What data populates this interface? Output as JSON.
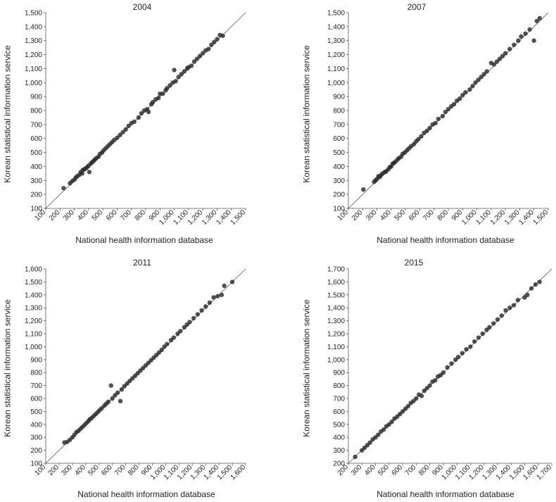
{
  "chart_data": [
    {
      "type": "scatter",
      "title": "2004",
      "xlabel": "National health information database",
      "ylabel": "Korean statistical information service",
      "xlim": [
        100,
        1500
      ],
      "ylim": [
        100,
        1500
      ],
      "xticks": [
        "100",
        "200",
        "300",
        "400",
        "500",
        "600",
        "700",
        "800",
        "900",
        "1,000",
        "1,100",
        "1,200",
        "1,300",
        "1,400",
        "1,500"
      ],
      "yticks": [
        "100",
        "200",
        "300",
        "400",
        "500",
        "600",
        "700",
        "800",
        "900",
        "1,000",
        "1,100",
        "1,200",
        "1,300",
        "1,400",
        "1,500"
      ],
      "reference_line": "y = x",
      "points": [
        [
          225,
          245
        ],
        [
          270,
          280
        ],
        [
          285,
          295
        ],
        [
          300,
          305
        ],
        [
          310,
          320
        ],
        [
          320,
          330
        ],
        [
          335,
          340
        ],
        [
          345,
          360
        ],
        [
          355,
          350
        ],
        [
          360,
          375
        ],
        [
          370,
          380
        ],
        [
          380,
          385
        ],
        [
          390,
          395
        ],
        [
          400,
          405
        ],
        [
          405,
          360
        ],
        [
          415,
          420
        ],
        [
          425,
          430
        ],
        [
          435,
          440
        ],
        [
          445,
          450
        ],
        [
          455,
          460
        ],
        [
          470,
          470
        ],
        [
          480,
          490
        ],
        [
          495,
          500
        ],
        [
          505,
          515
        ],
        [
          520,
          530
        ],
        [
          535,
          545
        ],
        [
          550,
          560
        ],
        [
          565,
          575
        ],
        [
          580,
          590
        ],
        [
          600,
          605
        ],
        [
          620,
          625
        ],
        [
          640,
          645
        ],
        [
          660,
          665
        ],
        [
          680,
          690
        ],
        [
          700,
          710
        ],
        [
          720,
          720
        ],
        [
          750,
          750
        ],
        [
          770,
          780
        ],
        [
          790,
          800
        ],
        [
          810,
          810
        ],
        [
          820,
          790
        ],
        [
          840,
          845
        ],
        [
          850,
          860
        ],
        [
          870,
          880
        ],
        [
          890,
          890
        ],
        [
          900,
          920
        ],
        [
          920,
          920
        ],
        [
          940,
          945
        ],
        [
          950,
          960
        ],
        [
          970,
          980
        ],
        [
          990,
          1000
        ],
        [
          1000,
          1090
        ],
        [
          1010,
          1010
        ],
        [
          1030,
          1040
        ],
        [
          1050,
          1060
        ],
        [
          1070,
          1080
        ],
        [
          1090,
          1100
        ],
        [
          1100,
          1110
        ],
        [
          1120,
          1120
        ],
        [
          1140,
          1150
        ],
        [
          1160,
          1170
        ],
        [
          1180,
          1190
        ],
        [
          1200,
          1210
        ],
        [
          1220,
          1230
        ],
        [
          1240,
          1240
        ],
        [
          1260,
          1270
        ],
        [
          1280,
          1290
        ],
        [
          1300,
          1310
        ],
        [
          1320,
          1340
        ],
        [
          1340,
          1335
        ]
      ]
    },
    {
      "type": "scatter",
      "title": "2007",
      "xlabel": "National health information database",
      "ylabel": "Korean statistical information service",
      "xlim": [
        100,
        1500
      ],
      "ylim": [
        100,
        1500
      ],
      "xticks": [
        "100",
        "200",
        "300",
        "400",
        "500",
        "600",
        "700",
        "800",
        "900",
        "1,000",
        "1,100",
        "1,200",
        "1,300",
        "1,400",
        "1,500"
      ],
      "yticks": [
        "100",
        "200",
        "300",
        "400",
        "500",
        "600",
        "700",
        "800",
        "900",
        "1,000",
        "1,100",
        "1,200",
        "1,300",
        "1,400",
        "1,500"
      ],
      "reference_line": "y = x",
      "points": [
        [
          205,
          235
        ],
        [
          280,
          290
        ],
        [
          290,
          300
        ],
        [
          300,
          310
        ],
        [
          310,
          330
        ],
        [
          320,
          325
        ],
        [
          330,
          340
        ],
        [
          340,
          350
        ],
        [
          355,
          360
        ],
        [
          365,
          365
        ],
        [
          380,
          380
        ],
        [
          390,
          395
        ],
        [
          400,
          400
        ],
        [
          410,
          420
        ],
        [
          420,
          425
        ],
        [
          430,
          435
        ],
        [
          445,
          450
        ],
        [
          455,
          460
        ],
        [
          470,
          470
        ],
        [
          480,
          490
        ],
        [
          495,
          500
        ],
        [
          510,
          515
        ],
        [
          525,
          530
        ],
        [
          540,
          545
        ],
        [
          560,
          560
        ],
        [
          575,
          580
        ],
        [
          590,
          595
        ],
        [
          610,
          615
        ],
        [
          630,
          640
        ],
        [
          650,
          655
        ],
        [
          670,
          675
        ],
        [
          690,
          700
        ],
        [
          710,
          710
        ],
        [
          730,
          740
        ],
        [
          760,
          760
        ],
        [
          780,
          790
        ],
        [
          800,
          810
        ],
        [
          820,
          830
        ],
        [
          840,
          845
        ],
        [
          860,
          870
        ],
        [
          880,
          885
        ],
        [
          900,
          910
        ],
        [
          920,
          930
        ],
        [
          950,
          950
        ],
        [
          970,
          975
        ],
        [
          990,
          1000
        ],
        [
          1010,
          1020
        ],
        [
          1030,
          1040
        ],
        [
          1050,
          1060
        ],
        [
          1070,
          1080
        ],
        [
          1100,
          1140
        ],
        [
          1120,
          1130
        ],
        [
          1140,
          1150
        ],
        [
          1160,
          1170
        ],
        [
          1180,
          1190
        ],
        [
          1200,
          1210
        ],
        [
          1230,
          1240
        ],
        [
          1260,
          1270
        ],
        [
          1290,
          1300
        ],
        [
          1310,
          1330
        ],
        [
          1340,
          1350
        ],
        [
          1370,
          1380
        ],
        [
          1400,
          1300
        ],
        [
          1420,
          1440
        ],
        [
          1440,
          1460
        ]
      ]
    },
    {
      "type": "scatter",
      "title": "2011",
      "xlabel": "National health information database",
      "ylabel": "Korean statistical information service",
      "xlim": [
        100,
        1600
      ],
      "ylim": [
        100,
        1600
      ],
      "xticks": [
        "100",
        "200",
        "300",
        "400",
        "500",
        "600",
        "700",
        "800",
        "900",
        "1,000",
        "1,100",
        "1,200",
        "1,300",
        "1,400",
        "1,500",
        "1,600"
      ],
      "yticks": [
        "100",
        "200",
        "300",
        "400",
        "500",
        "600",
        "700",
        "800",
        "900",
        "1,000",
        "1,100",
        "1,200",
        "1,300",
        "1,400",
        "1,500",
        "1,600"
      ],
      "reference_line": "y = x",
      "points": [
        [
          240,
          260
        ],
        [
          260,
          265
        ],
        [
          280,
          280
        ],
        [
          300,
          300
        ],
        [
          315,
          320
        ],
        [
          330,
          340
        ],
        [
          345,
          350
        ],
        [
          360,
          365
        ],
        [
          375,
          380
        ],
        [
          390,
          395
        ],
        [
          405,
          410
        ],
        [
          420,
          425
        ],
        [
          430,
          440
        ],
        [
          445,
          450
        ],
        [
          460,
          465
        ],
        [
          475,
          480
        ],
        [
          490,
          495
        ],
        [
          505,
          510
        ],
        [
          520,
          525
        ],
        [
          540,
          545
        ],
        [
          555,
          560
        ],
        [
          570,
          575
        ],
        [
          590,
          700
        ],
        [
          600,
          600
        ],
        [
          620,
          625
        ],
        [
          640,
          645
        ],
        [
          660,
          580
        ],
        [
          670,
          670
        ],
        [
          690,
          695
        ],
        [
          710,
          715
        ],
        [
          730,
          735
        ],
        [
          750,
          755
        ],
        [
          770,
          775
        ],
        [
          790,
          795
        ],
        [
          810,
          815
        ],
        [
          830,
          835
        ],
        [
          850,
          855
        ],
        [
          870,
          875
        ],
        [
          890,
          895
        ],
        [
          910,
          915
        ],
        [
          930,
          935
        ],
        [
          950,
          955
        ],
        [
          970,
          975
        ],
        [
          990,
          1000
        ],
        [
          1010,
          1020
        ],
        [
          1040,
          1050
        ],
        [
          1060,
          1070
        ],
        [
          1090,
          1100
        ],
        [
          1110,
          1120
        ],
        [
          1140,
          1150
        ],
        [
          1160,
          1170
        ],
        [
          1180,
          1190
        ],
        [
          1210,
          1220
        ],
        [
          1240,
          1250
        ],
        [
          1270,
          1280
        ],
        [
          1300,
          1310
        ],
        [
          1330,
          1340
        ],
        [
          1360,
          1380
        ],
        [
          1390,
          1390
        ],
        [
          1420,
          1400
        ],
        [
          1440,
          1470
        ],
        [
          1500,
          1500
        ]
      ]
    },
    {
      "type": "scatter",
      "title": "2015",
      "xlabel": "National health information database",
      "ylabel": "Korean statistical information service",
      "xlim": [
        200,
        1700
      ],
      "ylim": [
        200,
        1700
      ],
      "xticks": [
        "200",
        "300",
        "400",
        "500",
        "600",
        "700",
        "800",
        "900",
        "1,000",
        "1,100",
        "1,200",
        "1,300",
        "1,400",
        "1,500",
        "1,600",
        "1,700"
      ],
      "yticks": [
        "200",
        "300",
        "400",
        "500",
        "600",
        "700",
        "800",
        "900",
        "1,000",
        "1,100",
        "1,200",
        "1,300",
        "1,400",
        "1,500",
        "1,600",
        "1,700"
      ],
      "reference_line": "y = x",
      "points": [
        [
          250,
          250
        ],
        [
          300,
          300
        ],
        [
          320,
          320
        ],
        [
          340,
          340
        ],
        [
          360,
          360
        ],
        [
          380,
          385
        ],
        [
          400,
          400
        ],
        [
          420,
          420
        ],
        [
          440,
          445
        ],
        [
          460,
          460
        ],
        [
          480,
          485
        ],
        [
          500,
          500
        ],
        [
          520,
          520
        ],
        [
          540,
          545
        ],
        [
          560,
          560
        ],
        [
          580,
          580
        ],
        [
          600,
          600
        ],
        [
          620,
          620
        ],
        [
          640,
          640
        ],
        [
          660,
          665
        ],
        [
          680,
          680
        ],
        [
          700,
          700
        ],
        [
          720,
          730
        ],
        [
          740,
          720
        ],
        [
          760,
          760
        ],
        [
          780,
          780
        ],
        [
          800,
          800
        ],
        [
          820,
          830
        ],
        [
          840,
          840
        ],
        [
          860,
          870
        ],
        [
          880,
          880
        ],
        [
          900,
          900
        ],
        [
          930,
          940
        ],
        [
          960,
          970
        ],
        [
          990,
          1000
        ],
        [
          1010,
          1020
        ],
        [
          1040,
          1050
        ],
        [
          1070,
          1080
        ],
        [
          1100,
          1100
        ],
        [
          1130,
          1140
        ],
        [
          1160,
          1170
        ],
        [
          1190,
          1200
        ],
        [
          1220,
          1230
        ],
        [
          1240,
          1250
        ],
        [
          1270,
          1280
        ],
        [
          1300,
          1310
        ],
        [
          1330,
          1340
        ],
        [
          1360,
          1380
        ],
        [
          1390,
          1400
        ],
        [
          1420,
          1420
        ],
        [
          1450,
          1460
        ],
        [
          1500,
          1480
        ],
        [
          1520,
          1500
        ],
        [
          1550,
          1550
        ],
        [
          1580,
          1580
        ],
        [
          1610,
          1600
        ]
      ]
    }
  ]
}
